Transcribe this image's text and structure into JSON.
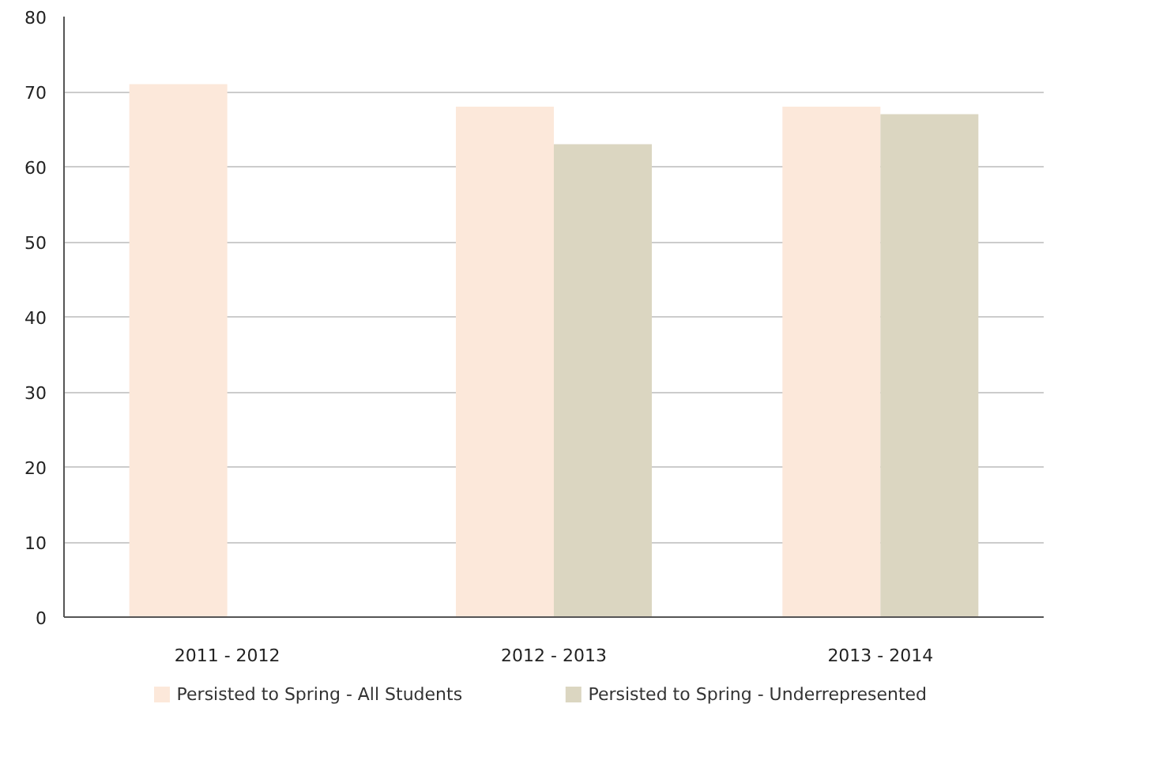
{
  "chart_data": {
    "type": "bar",
    "categories": [
      "2011 - 2012",
      "2012 - 2013",
      "2013 - 2014"
    ],
    "series": [
      {
        "name": "Persisted to Spring - All Students",
        "color": "#fce8da",
        "values": [
          71,
          68,
          68
        ]
      },
      {
        "name": "Persisted to Spring - Underrepresented",
        "color": "#dbd6c1",
        "values": [
          null,
          63,
          67
        ]
      }
    ],
    "ylim": [
      0,
      80
    ],
    "yticks": [
      0,
      10,
      20,
      30,
      40,
      50,
      60,
      70,
      80
    ],
    "grid": "y",
    "legend": "bottom"
  }
}
